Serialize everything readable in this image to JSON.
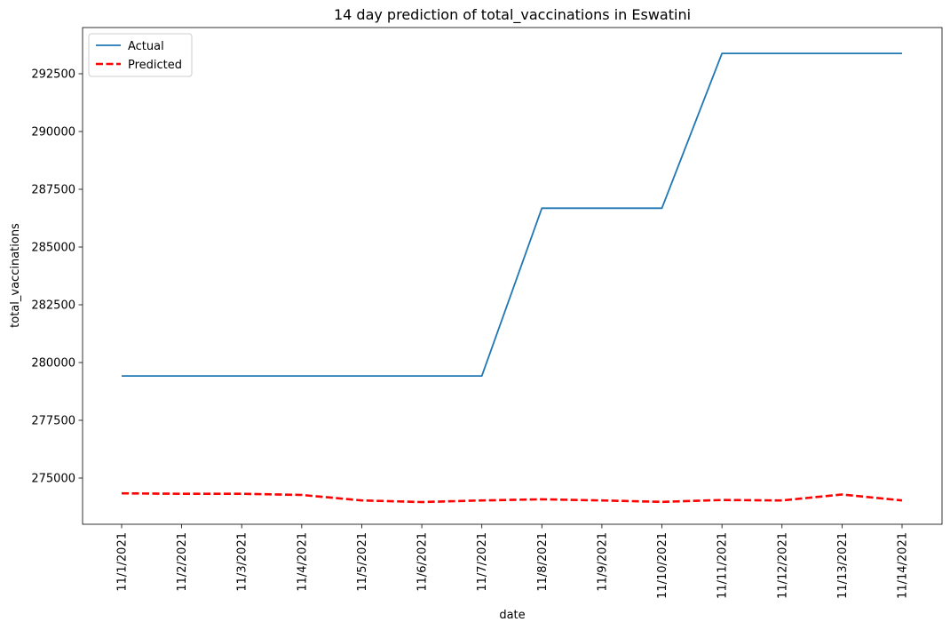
{
  "chart_data": {
    "type": "line",
    "title": "14 day prediction of total_vaccinations in Eswatini",
    "xlabel": "date",
    "ylabel": "total_vaccinations",
    "categories": [
      "11/1/2021",
      "11/2/2021",
      "11/3/2021",
      "11/4/2021",
      "11/5/2021",
      "11/6/2021",
      "11/7/2021",
      "11/8/2021",
      "11/9/2021",
      "11/10/2021",
      "11/11/2021",
      "11/12/2021",
      "11/13/2021",
      "11/14/2021"
    ],
    "yticks": [
      275000,
      277500,
      280000,
      282500,
      285000,
      287500,
      290000,
      292500
    ],
    "ylim": [
      273000,
      294500
    ],
    "legend_position": "top-left",
    "grid": false,
    "series": [
      {
        "name": "Actual",
        "color": "#1f77b4",
        "style": "solid",
        "values": [
          279420,
          279420,
          279420,
          279420,
          279420,
          279420,
          279420,
          286680,
          286680,
          286680,
          293380,
          293380,
          293380,
          293380
        ]
      },
      {
        "name": "Predicted",
        "color": "#ff0000",
        "style": "dashed",
        "values": [
          274340,
          274320,
          274320,
          274270,
          274030,
          273960,
          274030,
          274080,
          274030,
          273970,
          274050,
          274030,
          274290,
          274030
        ]
      }
    ]
  }
}
